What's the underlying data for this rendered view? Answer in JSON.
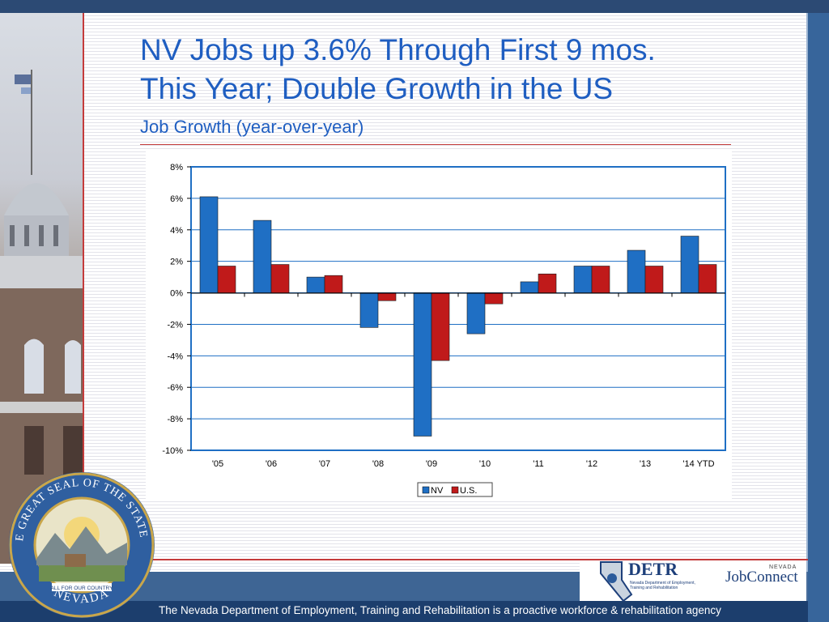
{
  "slide": {
    "title_line1": "NV Jobs up 3.6% Through First 9 mos.",
    "title_line2": "This Year; Double Growth in the US",
    "subtitle": "Job Growth (year-over-year)",
    "footer": "The Nevada Department of Employment, Training and Rehabilitation is a proactive workforce & rehabilitation agency",
    "colors": {
      "title": "#1f5ec1",
      "nv": "#1f6fc4",
      "us": "#c01a1a",
      "navy": "#1c3e6d",
      "accent_rule": "#c43b3b"
    }
  },
  "logos": {
    "detr_word": "DETR",
    "detr_sub": "Nevada Department of Employment, Training and Rehabilitation",
    "jobconnect_top": "NEVADA",
    "jobconnect_word": "JobConnect",
    "seal_outer_text": "THE GREAT SEAL OF THE STATE OF",
    "seal_bottom_text": "NEVADA",
    "seal_motto": "ALL FOR OUR COUNTRY"
  },
  "chart_data": {
    "type": "bar",
    "categories": [
      "'05",
      "'06",
      "'07",
      "'08",
      "'09",
      "'10",
      "'11",
      "'12",
      "'13",
      "'14 YTD"
    ],
    "series": [
      {
        "name": "NV",
        "color": "#1f6fc4",
        "values": [
          6.1,
          4.6,
          1.0,
          -2.2,
          -9.1,
          -2.6,
          0.7,
          1.7,
          2.7,
          3.6
        ]
      },
      {
        "name": "U.S.",
        "color": "#c01a1a",
        "values": [
          1.7,
          1.8,
          1.1,
          -0.5,
          -4.3,
          -0.7,
          1.2,
          1.7,
          1.7,
          1.8
        ]
      }
    ],
    "ylim": [
      -10,
      8
    ],
    "yticks": [
      "8%",
      "6%",
      "4%",
      "2%",
      "0%",
      "-2%",
      "-4%",
      "-6%",
      "-8%",
      "-10%"
    ],
    "grid": true,
    "legend": "bottom-center"
  }
}
